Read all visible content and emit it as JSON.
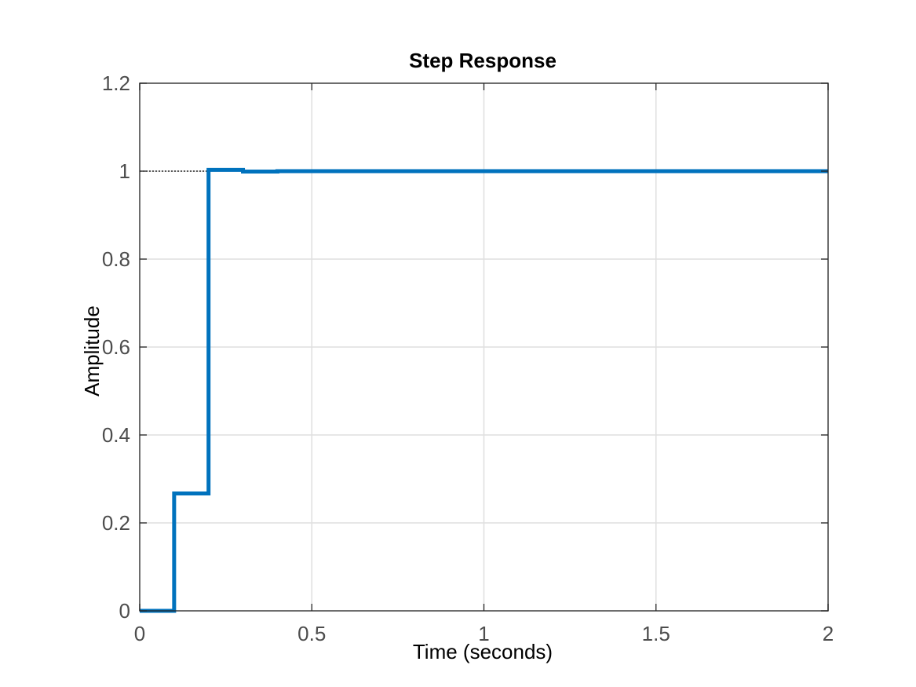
{
  "chart_data": {
    "type": "line",
    "title": "Step Response",
    "xlabel": "Time (seconds)",
    "ylabel": "Amplitude",
    "xlim": [
      0,
      2
    ],
    "ylim": [
      0,
      1.2
    ],
    "x_ticks": [
      "0",
      "0.5",
      "1",
      "1.5",
      "2"
    ],
    "y_ticks": [
      "0",
      "0.2",
      "0.4",
      "0.6",
      "0.8",
      "1",
      "1.2"
    ],
    "grid": true,
    "legend": "none",
    "steady_state_value": 1,
    "series": [
      {
        "style": "stairs",
        "color": "#0072BD",
        "x": [
          0,
          0.1,
          0.2,
          0.3,
          0.4,
          2
        ],
        "y": [
          0,
          0.267,
          1.003,
          0.999,
          1,
          1
        ]
      }
    ]
  }
}
